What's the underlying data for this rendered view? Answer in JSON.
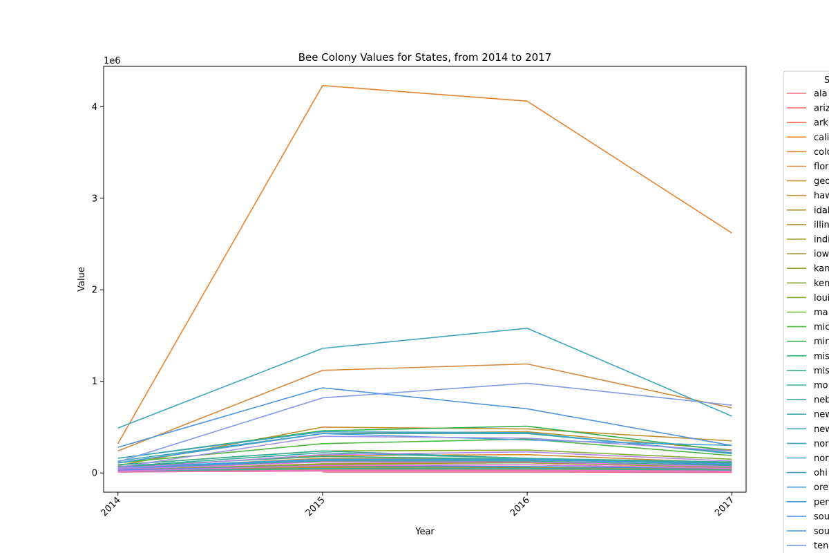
{
  "chart_data": {
    "type": "line",
    "title": "Bee Colony Values for States, from 2014 to 2017",
    "xlabel": "Year",
    "ylabel": "Value",
    "y_offset_label": "1e6",
    "x": [
      "2014",
      "2015",
      "2016",
      "2017"
    ],
    "xlim": [
      2013.93,
      2017.07
    ],
    "ylim": [
      -210000,
      4440000
    ],
    "yticks": [
      {
        "value": 0,
        "label": "0"
      },
      {
        "value": 1000000,
        "label": "1"
      },
      {
        "value": 2000000,
        "label": "2"
      },
      {
        "value": 3000000,
        "label": "3"
      },
      {
        "value": 4000000,
        "label": "4"
      }
    ],
    "legend": {
      "title": "S",
      "placement": "outside right",
      "entries": [
        "ala",
        "ariz",
        "ark",
        "cali",
        "colo",
        "flor",
        "geo",
        "haw",
        "idal",
        "illin",
        "indi",
        "iow",
        "kan",
        "ken",
        "loui",
        "ma",
        "mic",
        "min",
        "mis",
        "mis",
        "mo",
        "neb",
        "new",
        "new",
        "nor",
        "nor",
        "ohi",
        "ore",
        "pen",
        "sou",
        "sou",
        "ten"
      ]
    },
    "series": [
      {
        "legend_index": 0,
        "color": "#f77189",
        "values": [
          20000,
          60000,
          50000,
          30000
        ]
      },
      {
        "legend_index": 1,
        "color": "#f5736c",
        "values": [
          40000,
          120000,
          110000,
          70000
        ]
      },
      {
        "legend_index": 2,
        "color": "#f27a4c",
        "values": [
          30000,
          90000,
          90000,
          50000
        ]
      },
      {
        "legend_index": 3,
        "color": "#e8822e",
        "values": [
          320000,
          4230000,
          4060000,
          2620000
        ]
      },
      {
        "legend_index": 4,
        "color": "#de873a",
        "values": [
          50000,
          160000,
          150000,
          90000
        ]
      },
      {
        "legend_index": 5,
        "color": "#d4893a",
        "values": [
          240000,
          1120000,
          1190000,
          710000
        ]
      },
      {
        "legend_index": 6,
        "color": "#cb8c31",
        "values": [
          60000,
          190000,
          200000,
          110000
        ]
      },
      {
        "legend_index": 7,
        "color": "#c28f30",
        "values": [
          80000,
          500000,
          480000,
          350000
        ]
      },
      {
        "legend_index": 8,
        "color": "#b9932f",
        "values": [
          110000,
          430000,
          450000,
          250000
        ]
      },
      {
        "legend_index": 9,
        "color": "#b0962f",
        "values": [
          20000,
          70000,
          60000,
          40000
        ]
      },
      {
        "legend_index": 10,
        "color": "#a79a2f",
        "values": [
          20000,
          60000,
          60000,
          40000
        ]
      },
      {
        "legend_index": 11,
        "color": "#9e9e30",
        "values": [
          30000,
          100000,
          110000,
          60000
        ]
      },
      {
        "legend_index": 12,
        "color": "#94a230",
        "values": [
          30000,
          90000,
          90000,
          50000
        ]
      },
      {
        "legend_index": 13,
        "color": "#8ba632",
        "values": [
          20000,
          50000,
          50000,
          30000
        ]
      },
      {
        "legend_index": 14,
        "color": "#7fab32",
        "values": [
          90000,
          240000,
          250000,
          150000
        ]
      },
      {
        "legend_index": 15,
        "color": "#6db33a",
        "values": [
          20000,
          40000,
          40000,
          30000
        ]
      },
      {
        "legend_index": 16,
        "color": "#4eb53c",
        "values": [
          110000,
          320000,
          370000,
          190000
        ]
      },
      {
        "legend_index": 17,
        "color": "#33b04d",
        "values": [
          160000,
          460000,
          510000,
          240000
        ]
      },
      {
        "legend_index": 18,
        "color": "#34ae6e",
        "values": [
          70000,
          180000,
          150000,
          110000
        ]
      },
      {
        "legend_index": 19,
        "color": "#36ad83",
        "values": [
          40000,
          130000,
          130000,
          80000
        ]
      },
      {
        "legend_index": 20,
        "color": "#37ab93",
        "values": [
          90000,
          240000,
          160000,
          120000
        ]
      },
      {
        "legend_index": 21,
        "color": "#38aaa0",
        "values": [
          70000,
          220000,
          160000,
          100000
        ]
      },
      {
        "legend_index": 22,
        "color": "#39a9aa",
        "values": [
          20000,
          50000,
          50000,
          30000
        ]
      },
      {
        "legend_index": 23,
        "color": "#3ba7b3",
        "values": [
          130000,
          430000,
          430000,
          220000
        ]
      },
      {
        "legend_index": 24,
        "color": "#3da5bc",
        "values": [
          490000,
          1360000,
          1580000,
          620000
        ]
      },
      {
        "legend_index": 25,
        "color": "#3ea3c4",
        "values": [
          160000,
          450000,
          440000,
          210000
        ]
      },
      {
        "legend_index": 26,
        "color": "#40a1cc",
        "values": [
          60000,
          150000,
          150000,
          90000
        ]
      },
      {
        "legend_index": 27,
        "color": "#429ed4",
        "values": [
          110000,
          430000,
          360000,
          300000
        ]
      },
      {
        "legend_index": 28,
        "color": "#4599dd",
        "values": [
          50000,
          140000,
          140000,
          100000
        ]
      },
      {
        "legend_index": 29,
        "color": "#4a94e3",
        "values": [
          280000,
          930000,
          700000,
          300000
        ]
      },
      {
        "legend_index": 30,
        "color": "#418fe6",
        "values": [
          30000,
          80000,
          70000,
          50000
        ]
      },
      {
        "legend_index": 31,
        "color": "#7e9be6",
        "values": [
          120000,
          820000,
          980000,
          740000
        ]
      },
      {
        "legend_index": null,
        "color": "#a08fe8",
        "values": [
          60000,
          400000,
          380000,
          240000
        ]
      },
      {
        "legend_index": null,
        "color": "#b584e6",
        "values": [
          50000,
          200000,
          230000,
          130000
        ]
      },
      {
        "legend_index": null,
        "color": "#c77de2",
        "values": [
          40000,
          120000,
          120000,
          70000
        ]
      },
      {
        "legend_index": null,
        "color": "#d978db",
        "values": [
          20000,
          80000,
          90000,
          50000
        ]
      },
      {
        "legend_index": null,
        "color": "#e874c8",
        "values": [
          10000,
          30000,
          30000,
          20000
        ]
      },
      {
        "legend_index": null,
        "color": "#f174ad",
        "values": [
          10000,
          20000,
          20000,
          10000
        ]
      },
      {
        "legend_index": null,
        "color": "#f4739d",
        "values": [
          null,
          10000,
          10000,
          5000
        ]
      }
    ]
  }
}
